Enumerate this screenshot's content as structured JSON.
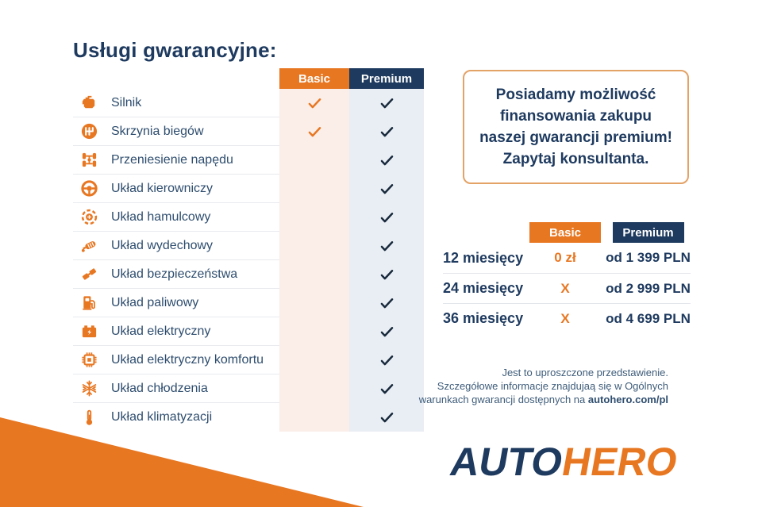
{
  "title": "Usługi gwarancyjne:",
  "plans": {
    "basic_label": "Basic",
    "premium_label": "Premium"
  },
  "services": {
    "rows": [
      {
        "label": "Silnik",
        "icon": "engine-icon",
        "basic": true,
        "premium": true
      },
      {
        "label": "Skrzynia biegów",
        "icon": "gearbox-icon",
        "basic": true,
        "premium": true
      },
      {
        "label": "Przeniesienie napędu",
        "icon": "drivetrain-icon",
        "basic": false,
        "premium": true
      },
      {
        "label": "Układ kierowniczy",
        "icon": "steering-wheel-icon",
        "basic": false,
        "premium": true
      },
      {
        "label": "Układ hamulcowy",
        "icon": "brake-disc-icon",
        "basic": false,
        "premium": true
      },
      {
        "label": "Układ wydechowy",
        "icon": "exhaust-icon",
        "basic": false,
        "premium": true
      },
      {
        "label": "Układ bezpieczeństwa",
        "icon": "seatbelt-icon",
        "basic": false,
        "premium": true
      },
      {
        "label": "Układ paliwowy",
        "icon": "fuel-pump-icon",
        "basic": false,
        "premium": true
      },
      {
        "label": "Układ elektryczny",
        "icon": "battery-icon",
        "basic": false,
        "premium": true
      },
      {
        "label": "Układ elektryczny komfortu",
        "icon": "chip-icon",
        "basic": false,
        "premium": true
      },
      {
        "label": "Układ chłodzenia",
        "icon": "snowflake-icon",
        "basic": false,
        "premium": true
      },
      {
        "label": "Układ klimatyzacji",
        "icon": "thermometer-icon",
        "basic": false,
        "premium": true
      }
    ]
  },
  "promo_box": {
    "lines": [
      "Posiadamy możliwość",
      "finansowania zakupu",
      "naszej gwarancji premium!",
      "Zapytaj konsultanta."
    ]
  },
  "pricing": {
    "rows": [
      {
        "term": "12 miesięcy",
        "basic": "0 zł",
        "premium": "od 1 399 PLN"
      },
      {
        "term": "24 miesięcy",
        "basic": "X",
        "premium": "od 2 999 PLN"
      },
      {
        "term": "36 miesięcy",
        "basic": "X",
        "premium": "od 4 699 PLN"
      }
    ]
  },
  "disclaimer": {
    "line1": "Jest to uproszczone przedstawienie.",
    "line2": "Szczegółowe informacje znajdujaą się w Ogólnych",
    "line3_prefix": "warunkach gwarancji dostępnych na ",
    "line3_link": "autohero.com/pl"
  },
  "logo": {
    "part1": "AUTO",
    "part2": "HERO"
  },
  "colors": {
    "orange": "#E87722",
    "navy": "#1E3A5F",
    "basic_col_bg": "#FBEEE8",
    "premium_col_bg": "#E9EDF4",
    "check_dark": "#17293B"
  }
}
